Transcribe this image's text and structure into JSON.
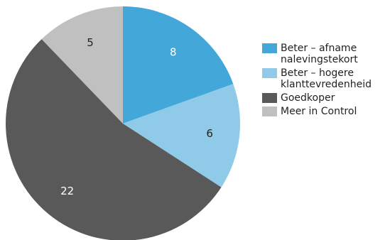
{
  "chart_data": {
    "type": "pie",
    "categories": [
      "Beter – afname nalevingstekort",
      "Beter – hogere klanttevredenheid",
      "Goedkoper",
      "Meer in Control"
    ],
    "values": [
      8,
      6,
      22,
      5
    ],
    "colors": [
      "#44a7da",
      "#8fcbe9",
      "#595959",
      "#c0c0c0"
    ],
    "label_colors": [
      "#ffffff",
      "#222222",
      "#ffffff",
      "#222222"
    ],
    "start_angle": "12 o'clock",
    "direction": "clockwise",
    "legend_position": "right",
    "data_labels": [
      "8",
      "6",
      "22",
      "5"
    ]
  },
  "legend": {
    "items": [
      {
        "line1": "Beter – afname",
        "line2": "nalevingstekort"
      },
      {
        "line1": "Beter – hogere",
        "line2": "klanttevredenheid"
      },
      {
        "line1": "Goedkoper",
        "line2": ""
      },
      {
        "line1": "Meer in Control",
        "line2": ""
      }
    ]
  }
}
